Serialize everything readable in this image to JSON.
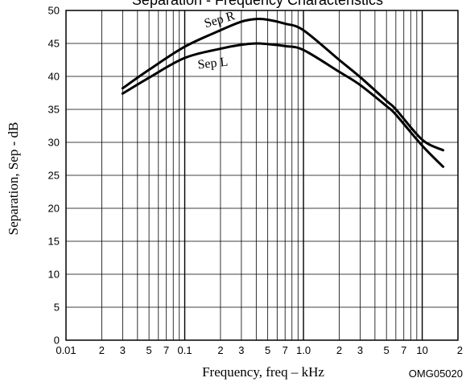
{
  "chart_data": {
    "type": "line",
    "title": "Separation - Frequency Characteristics",
    "xlabel": "Frequency, freq  –  kHz",
    "ylabel": "Separation, Sep  -  dB",
    "x_scale": "log",
    "xlim": [
      0.01,
      20
    ],
    "ylim": [
      0,
      50
    ],
    "grid": true,
    "x_tick_labels": [
      {
        "value": 0.01,
        "label": "0.01"
      },
      {
        "value": 0.02,
        "label": "2"
      },
      {
        "value": 0.03,
        "label": "3"
      },
      {
        "value": 0.05,
        "label": "5"
      },
      {
        "value": 0.07,
        "label": "7"
      },
      {
        "value": 0.1,
        "label": "0.1"
      },
      {
        "value": 0.2,
        "label": "2"
      },
      {
        "value": 0.3,
        "label": "3"
      },
      {
        "value": 0.5,
        "label": "5"
      },
      {
        "value": 0.7,
        "label": "7"
      },
      {
        "value": 1,
        "label": "1.0"
      },
      {
        "value": 2,
        "label": "2"
      },
      {
        "value": 3,
        "label": "3"
      },
      {
        "value": 5,
        "label": "5"
      },
      {
        "value": 7,
        "label": "7"
      },
      {
        "value": 10,
        "label": "10"
      },
      {
        "value": 20,
        "label": "2"
      }
    ],
    "y_ticks": [
      0,
      5,
      10,
      15,
      20,
      25,
      30,
      35,
      40,
      45,
      50
    ],
    "series": [
      {
        "name": "Sep R",
        "x": [
          0.03,
          0.05,
          0.1,
          0.2,
          0.3,
          0.4,
          0.5,
          0.7,
          1.0,
          2.0,
          3.0,
          5.0,
          6.0,
          10.0,
          15.0
        ],
        "y": [
          38.2,
          41.0,
          44.5,
          47.0,
          48.3,
          48.7,
          48.6,
          48.0,
          47.0,
          42.5,
          39.9,
          36.3,
          35.0,
          30.4,
          28.8
        ]
      },
      {
        "name": "Sep L",
        "x": [
          0.03,
          0.05,
          0.1,
          0.2,
          0.3,
          0.4,
          0.5,
          0.7,
          1.0,
          2.0,
          3.0,
          5.0,
          6.0,
          10.0,
          15.0
        ],
        "y": [
          37.4,
          39.8,
          42.8,
          44.2,
          44.8,
          45.0,
          44.9,
          44.6,
          44.0,
          40.7,
          38.7,
          35.5,
          34.2,
          29.5,
          26.3
        ]
      }
    ],
    "annotations": [
      "OMG05020"
    ]
  }
}
